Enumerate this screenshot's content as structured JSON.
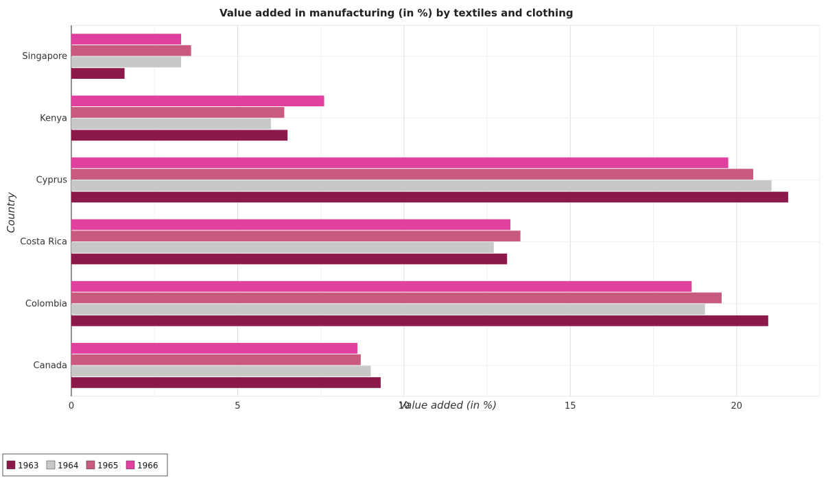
{
  "chart_data": {
    "type": "bar",
    "orientation": "horizontal",
    "title": "Value added in manufacturing (in %) by textiles and clothing",
    "xlabel": "Value added (in %)",
    "ylabel": "Country",
    "xlim": [
      0,
      22.5
    ],
    "xticks": [
      0,
      5,
      10,
      15,
      20
    ],
    "grid": true,
    "legend_position": "bottom-left",
    "categories": [
      "Canada",
      "Colombia",
      "Costa Rica",
      "Cyprus",
      "Kenya",
      "Singapore"
    ],
    "category_labels": [
      "Canada",
      "Colombia",
      "Costa Rica",
      "Cyprus",
      "Kenya",
      "Singapore"
    ],
    "series": [
      {
        "name": "1963",
        "color": "#8b1a4a",
        "values": [
          9.3,
          20.95,
          13.1,
          21.55,
          6.5,
          1.6
        ]
      },
      {
        "name": "1964",
        "color": "#c8c8c8",
        "values": [
          9.0,
          19.05,
          12.7,
          21.05,
          6.0,
          3.3
        ]
      },
      {
        "name": "1965",
        "color": "#c85a7d",
        "values": [
          8.7,
          19.55,
          13.5,
          20.5,
          6.4,
          3.6
        ]
      },
      {
        "name": "1966",
        "color": "#e0409e",
        "values": [
          8.6,
          18.65,
          13.2,
          19.75,
          7.6,
          3.3
        ]
      }
    ]
  }
}
